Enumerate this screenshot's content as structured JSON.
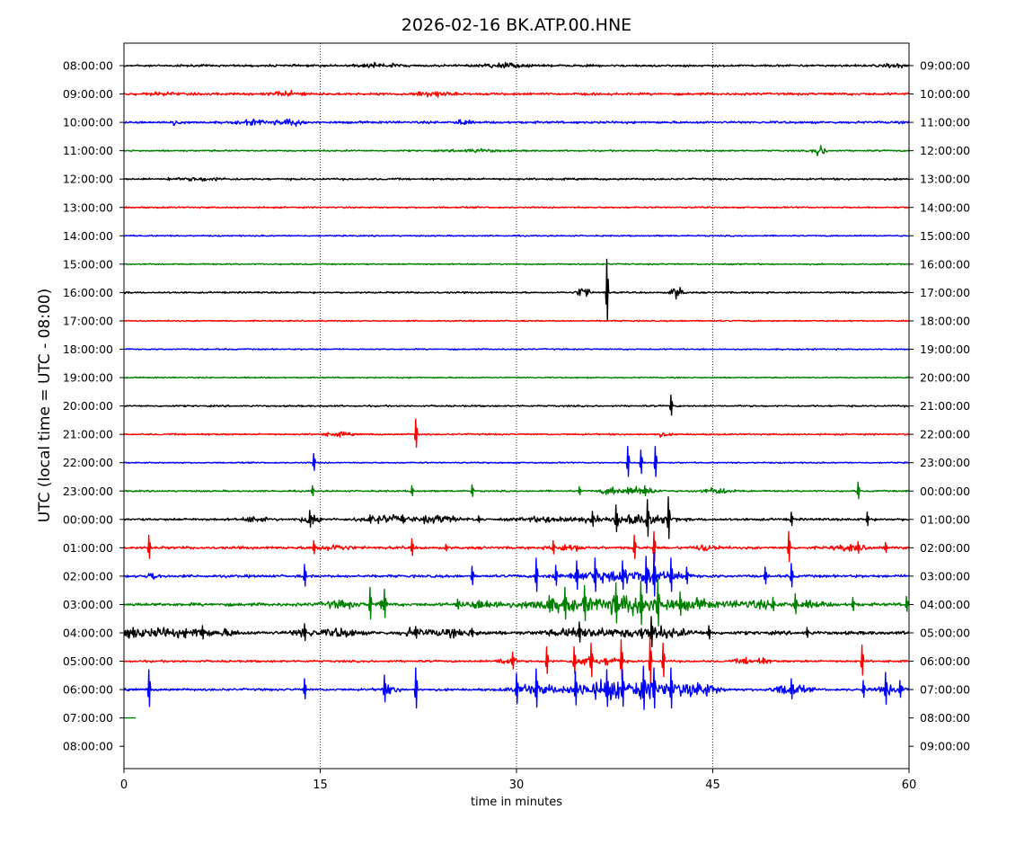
{
  "chart_data": {
    "type": "line",
    "title": "2026-02-16 BK.ATP.00.HNE",
    "xlabel": "time in minutes",
    "ylabel": "UTC (local time = UTC - 08:00)",
    "xlim": [
      0,
      60
    ],
    "xticks": [
      0,
      15,
      30,
      45,
      60
    ],
    "grid": "vertical dotted at 15, 30, 45",
    "left_labels": [
      "08:00:00",
      "09:00:00",
      "10:00:00",
      "11:00:00",
      "12:00:00",
      "13:00:00",
      "14:00:00",
      "15:00:00",
      "16:00:00",
      "17:00:00",
      "18:00:00",
      "19:00:00",
      "20:00:00",
      "21:00:00",
      "22:00:00",
      "23:00:00",
      "00:00:00",
      "01:00:00",
      "02:00:00",
      "03:00:00",
      "04:00:00",
      "05:00:00",
      "06:00:00",
      "07:00:00",
      "08:00:00"
    ],
    "right_labels": [
      "09:00:00",
      "10:00:00",
      "11:00:00",
      "12:00:00",
      "13:00:00",
      "14:00:00",
      "15:00:00",
      "16:00:00",
      "17:00:00",
      "18:00:00",
      "19:00:00",
      "20:00:00",
      "21:00:00",
      "22:00:00",
      "23:00:00",
      "00:00:00",
      "01:00:00",
      "02:00:00",
      "03:00:00",
      "04:00:00",
      "05:00:00",
      "06:00:00",
      "07:00:00",
      "08:00:00",
      "09:00:00"
    ],
    "trace_colors": [
      "#000000",
      "#ff0000",
      "#0000ff",
      "#008000"
    ],
    "traces": [
      {
        "noise": 0.8,
        "spikes": [],
        "bursts": [
          [
            19.5,
            2,
            1.3
          ],
          [
            29,
            2,
            1.6
          ],
          [
            59,
            1,
            1.5
          ]
        ]
      },
      {
        "noise": 0.9,
        "spikes": [],
        "bursts": [
          [
            12.5,
            1.5,
            1.6
          ],
          [
            23.5,
            1.5,
            2
          ],
          [
            3,
            1,
            1.3
          ]
        ]
      },
      {
        "noise": 0.9,
        "spikes": [],
        "bursts": [
          [
            12.8,
            1.2,
            2.2
          ],
          [
            10,
            1.5,
            1.5
          ],
          [
            25.9,
            0.6,
            2
          ],
          [
            3.8,
            0.6,
            1.5
          ]
        ]
      },
      {
        "noise": 0.6,
        "spikes": [],
        "bursts": [
          [
            53.2,
            0.6,
            4
          ],
          [
            27,
            2,
            1.1
          ]
        ]
      },
      {
        "noise": 0.7,
        "spikes": [
          [
            3.4,
            1.6
          ]
        ],
        "bursts": [
          [
            6,
            2,
            1.1
          ]
        ]
      },
      {
        "noise": 0.6,
        "spikes": [],
        "bursts": []
      },
      {
        "noise": 0.5,
        "spikes": [],
        "bursts": []
      },
      {
        "noise": 0.5,
        "spikes": [],
        "bursts": []
      },
      {
        "noise": 0.6,
        "spikes": [
          [
            36.9,
            37
          ]
        ],
        "bursts": [
          [
            35.1,
            0.5,
            5
          ],
          [
            42.3,
            0.5,
            5
          ]
        ]
      },
      {
        "noise": 0.5,
        "spikes": [],
        "bursts": []
      },
      {
        "noise": 0.5,
        "spikes": [],
        "bursts": []
      },
      {
        "noise": 0.5,
        "spikes": [],
        "bursts": []
      },
      {
        "noise": 0.6,
        "spikes": [
          [
            41.8,
            12
          ]
        ],
        "bursts": []
      },
      {
        "noise": 0.6,
        "spikes": [
          [
            22.3,
            17
          ]
        ],
        "bursts": [
          [
            16.3,
            1.2,
            1.4
          ],
          [
            41.2,
            0.6,
            1.4
          ]
        ]
      },
      {
        "noise": 0.5,
        "spikes": [
          [
            14.5,
            10
          ],
          [
            38.5,
            18
          ],
          [
            39.5,
            14
          ],
          [
            40.6,
            18
          ]
        ],
        "bursts": []
      },
      {
        "noise": 0.6,
        "spikes": [
          [
            14.4,
            6
          ],
          [
            22,
            6
          ],
          [
            26.6,
            7
          ],
          [
            34.8,
            5
          ],
          [
            56.1,
            10
          ],
          [
            38.5,
            4
          ],
          [
            39.8,
            6
          ]
        ],
        "bursts": [
          [
            37.2,
            1,
            2.5
          ],
          [
            39.5,
            1.5,
            3
          ],
          [
            45.3,
            1.5,
            2
          ]
        ]
      },
      {
        "noise": 0.9,
        "spikes": [
          [
            14.2,
            10
          ],
          [
            18.8,
            5
          ],
          [
            21.3,
            5
          ],
          [
            27.1,
            4
          ],
          [
            35.8,
            9
          ],
          [
            37.6,
            16
          ],
          [
            40,
            22
          ],
          [
            41.6,
            25
          ],
          [
            51,
            8
          ],
          [
            56.8,
            8
          ]
        ],
        "bursts": [
          [
            10,
            1,
            2
          ],
          [
            14.4,
            1,
            3
          ],
          [
            20,
            2,
            2.5
          ],
          [
            24,
            2,
            2.5
          ],
          [
            33,
            3,
            2
          ],
          [
            39,
            3,
            4
          ]
        ]
      },
      {
        "noise": 1.0,
        "spikes": [
          [
            1.9,
            14
          ],
          [
            14.5,
            8
          ],
          [
            22,
            10
          ],
          [
            24.6,
            4
          ],
          [
            32.8,
            8
          ],
          [
            39,
            14
          ],
          [
            40.5,
            18
          ],
          [
            50.8,
            18
          ],
          [
            56.1,
            7
          ],
          [
            58.2,
            6
          ]
        ],
        "bursts": [
          [
            16,
            1.5,
            2
          ],
          [
            34,
            1.5,
            2
          ],
          [
            44.5,
            1.2,
            2
          ],
          [
            55.5,
            1.5,
            2
          ]
        ]
      },
      {
        "noise": 1.0,
        "spikes": [
          [
            13.8,
            13
          ],
          [
            26.6,
            11
          ],
          [
            31.5,
            20
          ],
          [
            33,
            12
          ],
          [
            34.6,
            17
          ],
          [
            36,
            20
          ],
          [
            38.1,
            17
          ],
          [
            39.9,
            22
          ],
          [
            40.5,
            26
          ],
          [
            41.8,
            20
          ],
          [
            43,
            10
          ],
          [
            49,
            10
          ],
          [
            51,
            14
          ]
        ],
        "bursts": [
          [
            2.2,
            0.5,
            3
          ],
          [
            36,
            3,
            3
          ],
          [
            40,
            3,
            4
          ]
        ]
      },
      {
        "noise": 1.2,
        "spikes": [
          [
            18.8,
            19
          ],
          [
            19.9,
            17
          ],
          [
            25.5,
            6
          ],
          [
            32.5,
            10
          ],
          [
            33.7,
            19
          ],
          [
            35.2,
            21
          ],
          [
            37.6,
            24
          ],
          [
            39.5,
            26
          ],
          [
            40.8,
            28
          ],
          [
            42.5,
            14
          ],
          [
            49.6,
            8
          ],
          [
            51.3,
            12
          ],
          [
            55.7,
            8
          ],
          [
            59.8,
            9
          ]
        ],
        "bursts": [
          [
            16.5,
            1.5,
            2.5
          ],
          [
            19.8,
            0.4,
            4
          ],
          [
            27.5,
            2,
            3
          ],
          [
            33,
            3,
            4
          ],
          [
            37.5,
            3,
            4
          ],
          [
            40,
            3,
            5
          ],
          [
            43.8,
            1.5,
            3
          ],
          [
            48,
            3,
            2.5
          ],
          [
            52.5,
            1.5,
            2
          ]
        ]
      },
      {
        "noise": 1.3,
        "spikes": [
          [
            0.7,
            6
          ],
          [
            6,
            8
          ],
          [
            13.8,
            10
          ],
          [
            22.3,
            7
          ],
          [
            26.6,
            5
          ],
          [
            34.8,
            12
          ],
          [
            40.3,
            18
          ],
          [
            44.7,
            8
          ],
          [
            52.2,
            6
          ]
        ],
        "bursts": [
          [
            0.5,
            1.5,
            3
          ],
          [
            3,
            1.5,
            3
          ],
          [
            5.5,
            1.5,
            3
          ],
          [
            8,
            1,
            2
          ],
          [
            13.8,
            1,
            3
          ],
          [
            16.5,
            1.5,
            3
          ],
          [
            22.2,
            1,
            3
          ],
          [
            25,
            2.5,
            2
          ],
          [
            35,
            3,
            3
          ],
          [
            40.5,
            3,
            4
          ]
        ]
      },
      {
        "noise": 0.8,
        "spikes": [
          [
            29.7,
            10
          ],
          [
            32.3,
            16
          ],
          [
            34.4,
            16
          ],
          [
            35.7,
            20
          ],
          [
            38,
            24
          ],
          [
            40.2,
            28
          ],
          [
            41.2,
            20
          ],
          [
            56.4,
            18
          ]
        ],
        "bursts": [
          [
            29.2,
            0.8,
            3
          ],
          [
            35.1,
            1,
            3.5
          ],
          [
            37.1,
            1,
            3
          ],
          [
            47.6,
            1,
            2
          ],
          [
            48.8,
            0.6,
            2.2
          ]
        ]
      },
      {
        "noise": 0.9,
        "spikes": [
          [
            1.9,
            22
          ],
          [
            13.8,
            12
          ],
          [
            19.9,
            16
          ],
          [
            22.3,
            24
          ],
          [
            30,
            18
          ],
          [
            31.5,
            23
          ],
          [
            34.5,
            20
          ],
          [
            36.9,
            22
          ],
          [
            38.1,
            22
          ],
          [
            39.7,
            26
          ],
          [
            40.5,
            24
          ],
          [
            41.8,
            24
          ],
          [
            51,
            12
          ],
          [
            56.5,
            10
          ],
          [
            58.2,
            19
          ],
          [
            59.3,
            10
          ]
        ],
        "bursts": [
          [
            20.3,
            0.8,
            3
          ],
          [
            31.3,
            2,
            3.5
          ],
          [
            35.6,
            2.5,
            4
          ],
          [
            38,
            2.5,
            5
          ],
          [
            41.2,
            2.5,
            5
          ],
          [
            44.2,
            1.5,
            5
          ],
          [
            50.9,
            1.5,
            4
          ],
          [
            58.8,
            1.5,
            3
          ]
        ]
      },
      {
        "noise": 0,
        "spikes": [],
        "bursts": [],
        "xmax": 0.95
      }
    ]
  }
}
